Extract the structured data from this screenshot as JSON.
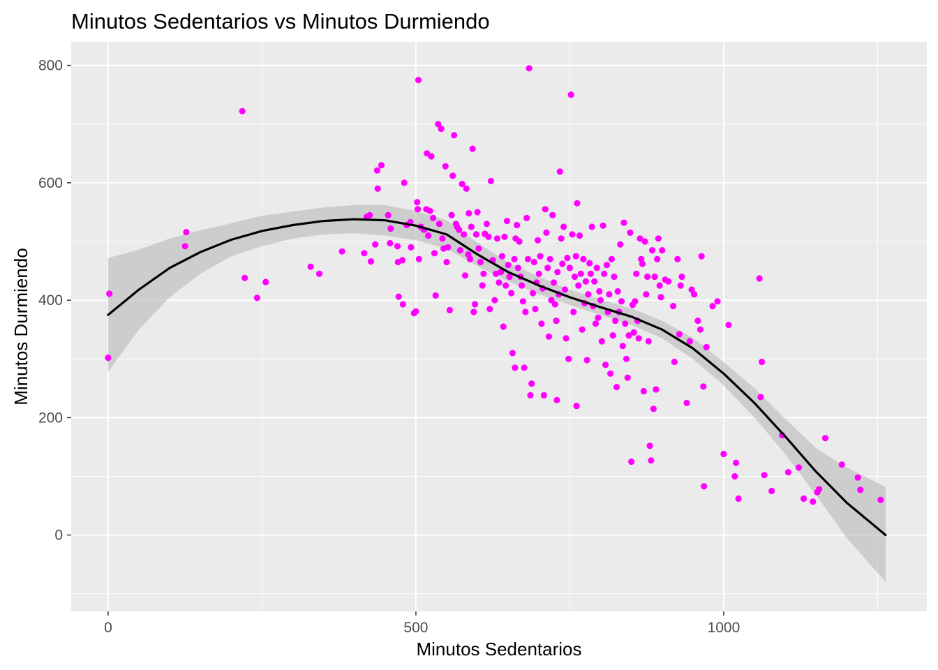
{
  "chart_data": {
    "type": "scatter",
    "title": "Minutos Sedentarios vs Minutos Durmiendo",
    "xlabel": "Minutos Sedentarios",
    "ylabel": "Minutos Durmiendo",
    "xlim": [
      -60,
      1330
    ],
    "ylim": [
      -130,
      840
    ],
    "xticks": [
      0,
      500,
      1000
    ],
    "yticks": [
      0,
      200,
      400,
      600,
      800
    ],
    "grid": true,
    "legend": "none",
    "colors": {
      "points": "#ff00ff",
      "smooth_line": "#000000",
      "ribbon": "#bdbdbd",
      "panel": "#ebebeb",
      "grid": "#ffffff"
    },
    "series": [
      {
        "values": [
          [
            0,
            302
          ],
          [
            2,
            411
          ],
          [
            125,
            492
          ],
          [
            127,
            516
          ],
          [
            218,
            722
          ],
          [
            222,
            438
          ],
          [
            242,
            404
          ],
          [
            256,
            431
          ],
          [
            329,
            457
          ],
          [
            343,
            445
          ],
          [
            380,
            483
          ],
          [
            416,
            480
          ],
          [
            420,
            542
          ],
          [
            425,
            545
          ],
          [
            427,
            466
          ],
          [
            434,
            495
          ],
          [
            437,
            621
          ],
          [
            438,
            590
          ],
          [
            444,
            630
          ],
          [
            455,
            545
          ],
          [
            458,
            497
          ],
          [
            459,
            522
          ],
          [
            470,
            492
          ],
          [
            471,
            465
          ],
          [
            472,
            406
          ],
          [
            478,
            468
          ],
          [
            479,
            393
          ],
          [
            481,
            600
          ],
          [
            485,
            528
          ],
          [
            491,
            533
          ],
          [
            492,
            490
          ],
          [
            497,
            378
          ],
          [
            500,
            381
          ],
          [
            502,
            567
          ],
          [
            503,
            555
          ],
          [
            504,
            775
          ],
          [
            505,
            470
          ],
          [
            508,
            525
          ],
          [
            513,
            520
          ],
          [
            517,
            555
          ],
          [
            518,
            650
          ],
          [
            520,
            510
          ],
          [
            523,
            552
          ],
          [
            525,
            645
          ],
          [
            528,
            540
          ],
          [
            530,
            480
          ],
          [
            532,
            408
          ],
          [
            536,
            700
          ],
          [
            538,
            530
          ],
          [
            541,
            692
          ],
          [
            543,
            505
          ],
          [
            545,
            488
          ],
          [
            548,
            628
          ],
          [
            550,
            465
          ],
          [
            552,
            490
          ],
          [
            555,
            383
          ],
          [
            558,
            545
          ],
          [
            560,
            612
          ],
          [
            562,
            681
          ],
          [
            565,
            530
          ],
          [
            567,
            525
          ],
          [
            570,
            520
          ],
          [
            572,
            485
          ],
          [
            575,
            598
          ],
          [
            578,
            512
          ],
          [
            580,
            442
          ],
          [
            582,
            590
          ],
          [
            585,
            478
          ],
          [
            586,
            548
          ],
          [
            588,
            470
          ],
          [
            590,
            525
          ],
          [
            592,
            658
          ],
          [
            594,
            380
          ],
          [
            596,
            393
          ],
          [
            598,
            512
          ],
          [
            600,
            550
          ],
          [
            602,
            488
          ],
          [
            605,
            465
          ],
          [
            608,
            425
          ],
          [
            610,
            445
          ],
          [
            612,
            513
          ],
          [
            615,
            530
          ],
          [
            618,
            508
          ],
          [
            620,
            385
          ],
          [
            622,
            603
          ],
          [
            625,
            468
          ],
          [
            628,
            400
          ],
          [
            630,
            445
          ],
          [
            632,
            505
          ],
          [
            635,
            430
          ],
          [
            638,
            448
          ],
          [
            640,
            475
          ],
          [
            642,
            355
          ],
          [
            644,
            508
          ],
          [
            646,
            425
          ],
          [
            648,
            535
          ],
          [
            650,
            460
          ],
          [
            652,
            440
          ],
          [
            655,
            412
          ],
          [
            657,
            310
          ],
          [
            660,
            470
          ],
          [
            661,
            285
          ],
          [
            662,
            505
          ],
          [
            664,
            528
          ],
          [
            666,
            455
          ],
          [
            668,
            500
          ],
          [
            670,
            440
          ],
          [
            672,
            425
          ],
          [
            674,
            398
          ],
          [
            676,
            285
          ],
          [
            678,
            380
          ],
          [
            680,
            540
          ],
          [
            682,
            470
          ],
          [
            684,
            795
          ],
          [
            686,
            238
          ],
          [
            688,
            258
          ],
          [
            690,
            412
          ],
          [
            692,
            465
          ],
          [
            694,
            385
          ],
          [
            696,
            430
          ],
          [
            698,
            502
          ],
          [
            700,
            445
          ],
          [
            702,
            475
          ],
          [
            704,
            360
          ],
          [
            706,
            420
          ],
          [
            708,
            238
          ],
          [
            710,
            555
          ],
          [
            712,
            515
          ],
          [
            714,
            455
          ],
          [
            716,
            338
          ],
          [
            718,
            470
          ],
          [
            720,
            400
          ],
          [
            722,
            545
          ],
          [
            724,
            430
          ],
          [
            726,
            393
          ],
          [
            728,
            365
          ],
          [
            729,
            230
          ],
          [
            730,
            448
          ],
          [
            732,
            410
          ],
          [
            734,
            619
          ],
          [
            736,
            505
          ],
          [
            738,
            462
          ],
          [
            740,
            525
          ],
          [
            742,
            418
          ],
          [
            744,
            335
          ],
          [
            746,
            472
          ],
          [
            748,
            300
          ],
          [
            750,
            455
          ],
          [
            752,
            750
          ],
          [
            754,
            512
          ],
          [
            756,
            380
          ],
          [
            758,
            440
          ],
          [
            760,
            475
          ],
          [
            761,
            220
          ],
          [
            762,
            565
          ],
          [
            764,
            425
          ],
          [
            766,
            510
          ],
          [
            768,
            445
          ],
          [
            770,
            350
          ],
          [
            772,
            470
          ],
          [
            774,
            395
          ],
          [
            776,
            432
          ],
          [
            778,
            298
          ],
          [
            780,
            410
          ],
          [
            782,
            463
          ],
          [
            784,
            445
          ],
          [
            786,
            525
          ],
          [
            788,
            390
          ],
          [
            790,
            432
          ],
          [
            792,
            360
          ],
          [
            794,
            455
          ],
          [
            796,
            370
          ],
          [
            798,
            415
          ],
          [
            800,
            400
          ],
          [
            802,
            330
          ],
          [
            804,
            527
          ],
          [
            806,
            445
          ],
          [
            808,
            290
          ],
          [
            810,
            460
          ],
          [
            812,
            380
          ],
          [
            814,
            410
          ],
          [
            816,
            275
          ],
          [
            818,
            470
          ],
          [
            820,
            340
          ],
          [
            822,
            440
          ],
          [
            824,
            365
          ],
          [
            826,
            252
          ],
          [
            828,
            415
          ],
          [
            830,
            380
          ],
          [
            832,
            495
          ],
          [
            834,
            398
          ],
          [
            836,
            322
          ],
          [
            838,
            532
          ],
          [
            840,
            360
          ],
          [
            842,
            300
          ],
          [
            844,
            268
          ],
          [
            846,
            340
          ],
          [
            848,
            515
          ],
          [
            850,
            125
          ],
          [
            852,
            392
          ],
          [
            854,
            345
          ],
          [
            856,
            398
          ],
          [
            858,
            445
          ],
          [
            860,
            365
          ],
          [
            862,
            335
          ],
          [
            864,
            505
          ],
          [
            866,
            470
          ],
          [
            868,
            462
          ],
          [
            870,
            245
          ],
          [
            872,
            500
          ],
          [
            874,
            410
          ],
          [
            876,
            440
          ],
          [
            878,
            330
          ],
          [
            880,
            152
          ],
          [
            882,
            127
          ],
          [
            884,
            485
          ],
          [
            886,
            215
          ],
          [
            888,
            440
          ],
          [
            890,
            248
          ],
          [
            892,
            470
          ],
          [
            894,
            505
          ],
          [
            896,
            425
          ],
          [
            898,
            405
          ],
          [
            900,
            485
          ],
          [
            905,
            435
          ],
          [
            910,
            432
          ],
          [
            918,
            390
          ],
          [
            920,
            295
          ],
          [
            925,
            470
          ],
          [
            928,
            342
          ],
          [
            930,
            425
          ],
          [
            932,
            440
          ],
          [
            940,
            225
          ],
          [
            945,
            330
          ],
          [
            948,
            418
          ],
          [
            952,
            410
          ],
          [
            958,
            365
          ],
          [
            962,
            350
          ],
          [
            964,
            475
          ],
          [
            967,
            253
          ],
          [
            968,
            83
          ],
          [
            972,
            320
          ],
          [
            982,
            390
          ],
          [
            990,
            398
          ],
          [
            1000,
            138
          ],
          [
            1008,
            358
          ],
          [
            1018,
            100
          ],
          [
            1020,
            123
          ],
          [
            1024,
            62
          ],
          [
            1058,
            437
          ],
          [
            1060,
            235
          ],
          [
            1062,
            295
          ],
          [
            1066,
            102
          ],
          [
            1078,
            75
          ],
          [
            1095,
            170
          ],
          [
            1105,
            107
          ],
          [
            1122,
            115
          ],
          [
            1130,
            62
          ],
          [
            1145,
            57
          ],
          [
            1152,
            73
          ],
          [
            1155,
            78
          ],
          [
            1165,
            165
          ],
          [
            1192,
            120
          ],
          [
            1218,
            98
          ],
          [
            1222,
            77
          ],
          [
            1255,
            60
          ]
        ]
      }
    ],
    "smooth": {
      "x": [
        0,
        50,
        100,
        150,
        200,
        250,
        300,
        350,
        400,
        450,
        500,
        550,
        600,
        650,
        700,
        750,
        800,
        850,
        900,
        950,
        1000,
        1050,
        1100,
        1150,
        1200,
        1263
      ],
      "y": [
        375,
        418,
        455,
        482,
        503,
        518,
        528,
        535,
        538,
        536,
        527,
        512,
        478,
        448,
        425,
        405,
        388,
        372,
        350,
        318,
        275,
        225,
        168,
        108,
        55,
        0
      ],
      "lower": [
        278,
        350,
        405,
        445,
        475,
        492,
        505,
        512,
        514,
        510,
        502,
        488,
        458,
        432,
        410,
        392,
        375,
        358,
        335,
        300,
        255,
        200,
        138,
        68,
        -5,
        -80
      ],
      "upper": [
        472,
        486,
        505,
        519,
        531,
        544,
        551,
        558,
        562,
        562,
        552,
        536,
        498,
        464,
        440,
        418,
        401,
        386,
        365,
        336,
        295,
        250,
        198,
        148,
        115,
        82
      ]
    }
  }
}
